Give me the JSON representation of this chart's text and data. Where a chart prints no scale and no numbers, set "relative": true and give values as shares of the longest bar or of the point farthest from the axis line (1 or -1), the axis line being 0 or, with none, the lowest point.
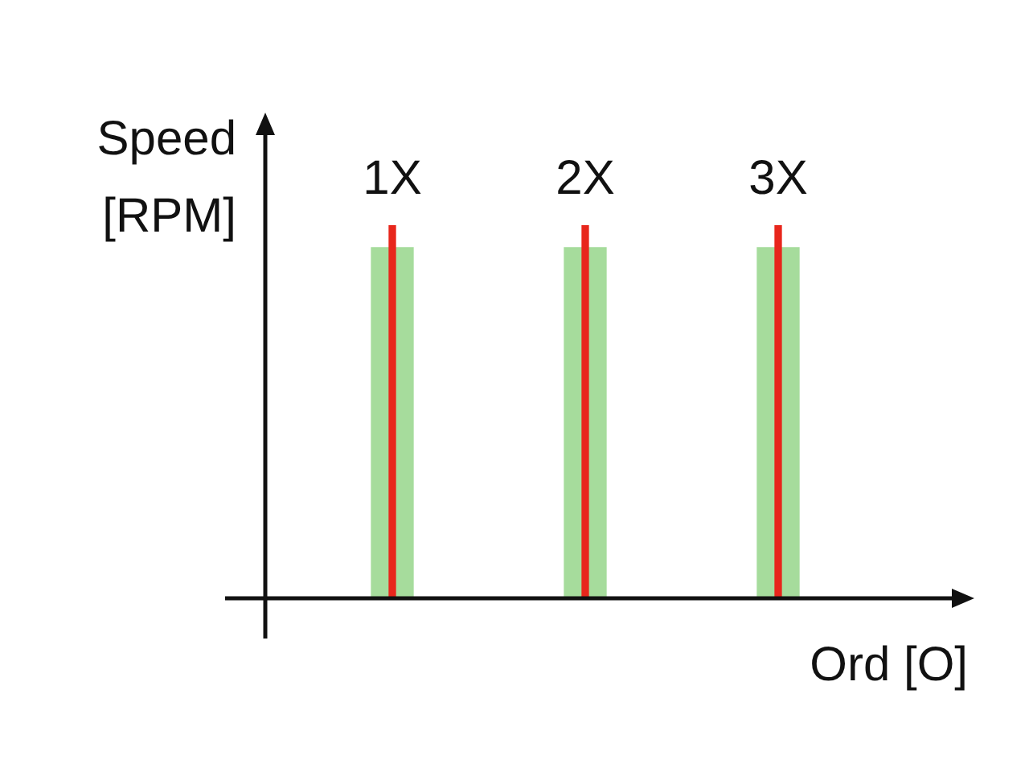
{
  "chart_data": {
    "type": "bar",
    "relative": true,
    "xlabel": "Ord [O]",
    "ylabel": "Speed\n[RPM]",
    "categories": [
      "1X",
      "2X",
      "3X"
    ],
    "series": [
      {
        "color": "#a6dc9c",
        "values": [
          0.94,
          0.94,
          0.94
        ]
      },
      {
        "color": "#e8261c",
        "values": [
          1,
          1,
          1
        ]
      }
    ],
    "legend": false
  }
}
